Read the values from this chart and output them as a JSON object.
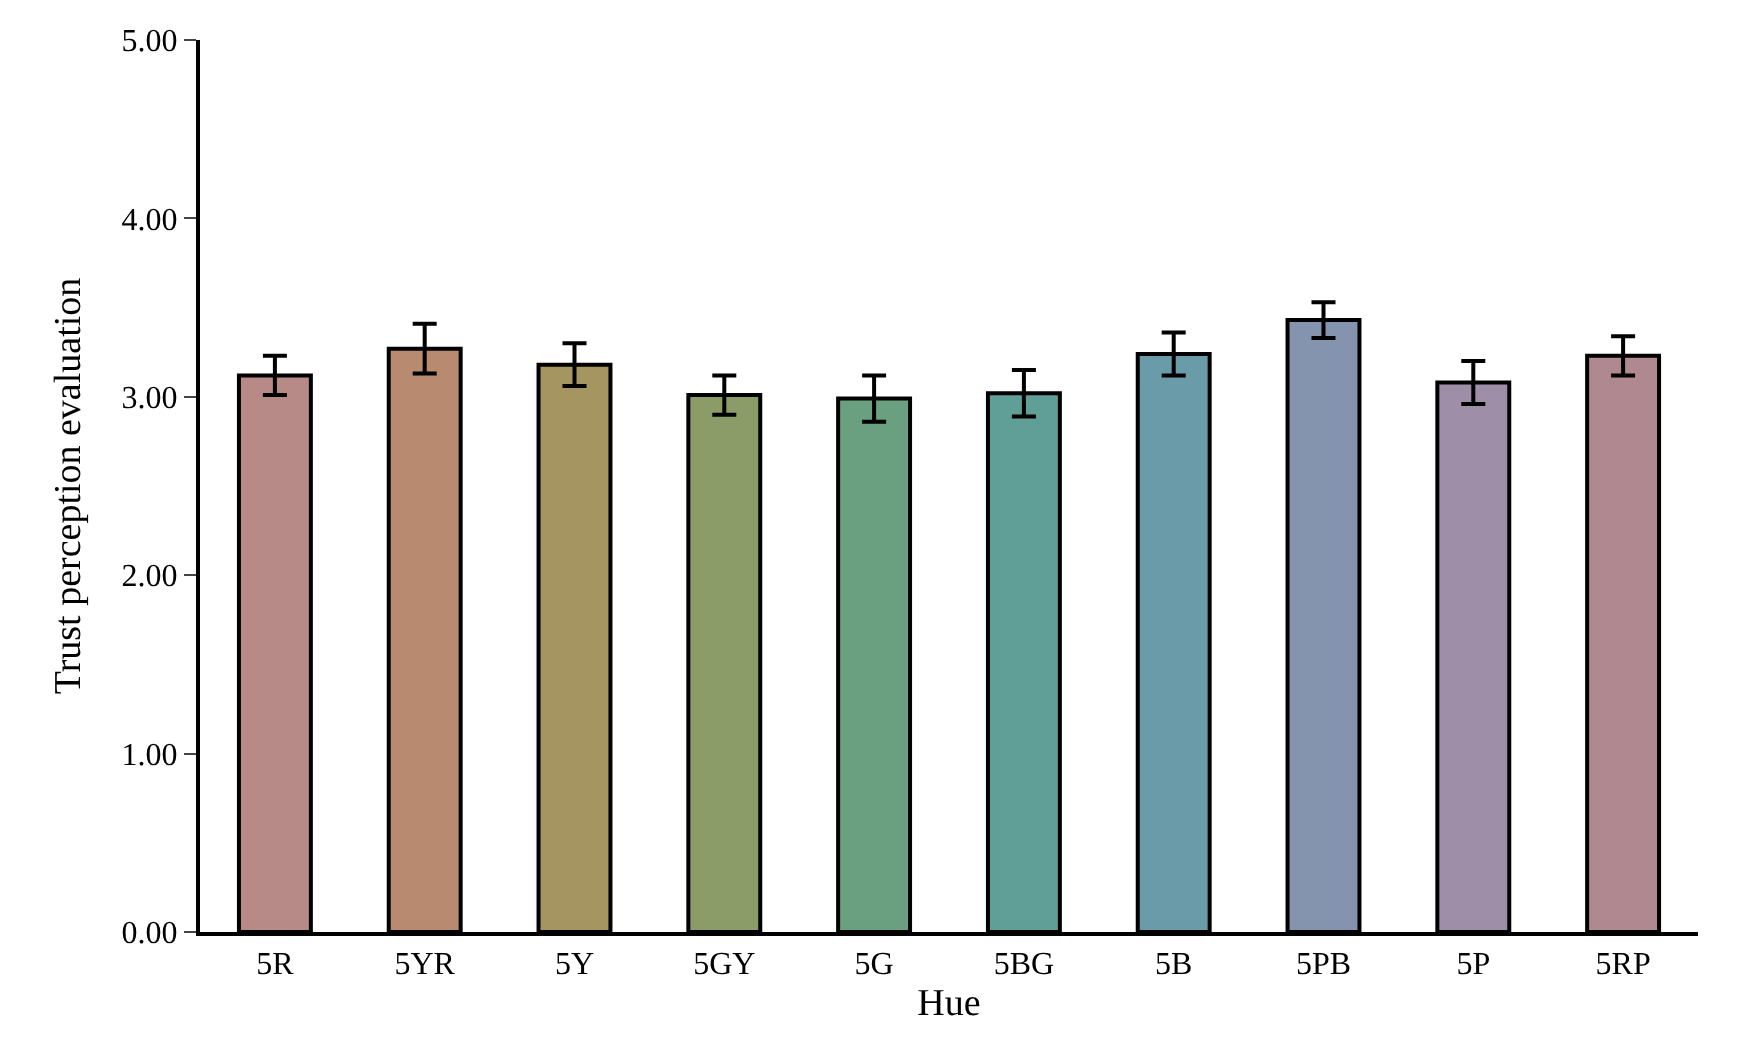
{
  "chart_data": {
    "type": "bar",
    "xlabel": "Hue",
    "ylabel": "Trust perception evaluation",
    "categories": [
      "5R",
      "5YR",
      "5Y",
      "5GY",
      "5G",
      "5BG",
      "5B",
      "5PB",
      "5P",
      "5RP"
    ],
    "values": [
      3.12,
      3.27,
      3.18,
      3.01,
      2.99,
      3.02,
      3.24,
      3.43,
      3.08,
      3.23
    ],
    "errors": [
      0.11,
      0.14,
      0.12,
      0.11,
      0.13,
      0.13,
      0.12,
      0.1,
      0.12,
      0.11
    ],
    "colors": [
      "#b88a87",
      "#b88b70",
      "#a59661",
      "#8c9c68",
      "#6aa07f",
      "#5f9f97",
      "#6a9ba8",
      "#8494ae",
      "#9e8ea8",
      "#b08890"
    ],
    "ylim": [
      0,
      5
    ],
    "yticks": [
      {
        "value": 0,
        "label": "0.00"
      },
      {
        "value": 1,
        "label": "1.00"
      },
      {
        "value": 2,
        "label": "2.00"
      },
      {
        "value": 3,
        "label": "3.00"
      },
      {
        "value": 4,
        "label": "4.00"
      },
      {
        "value": 5,
        "label": "5.00"
      }
    ]
  }
}
